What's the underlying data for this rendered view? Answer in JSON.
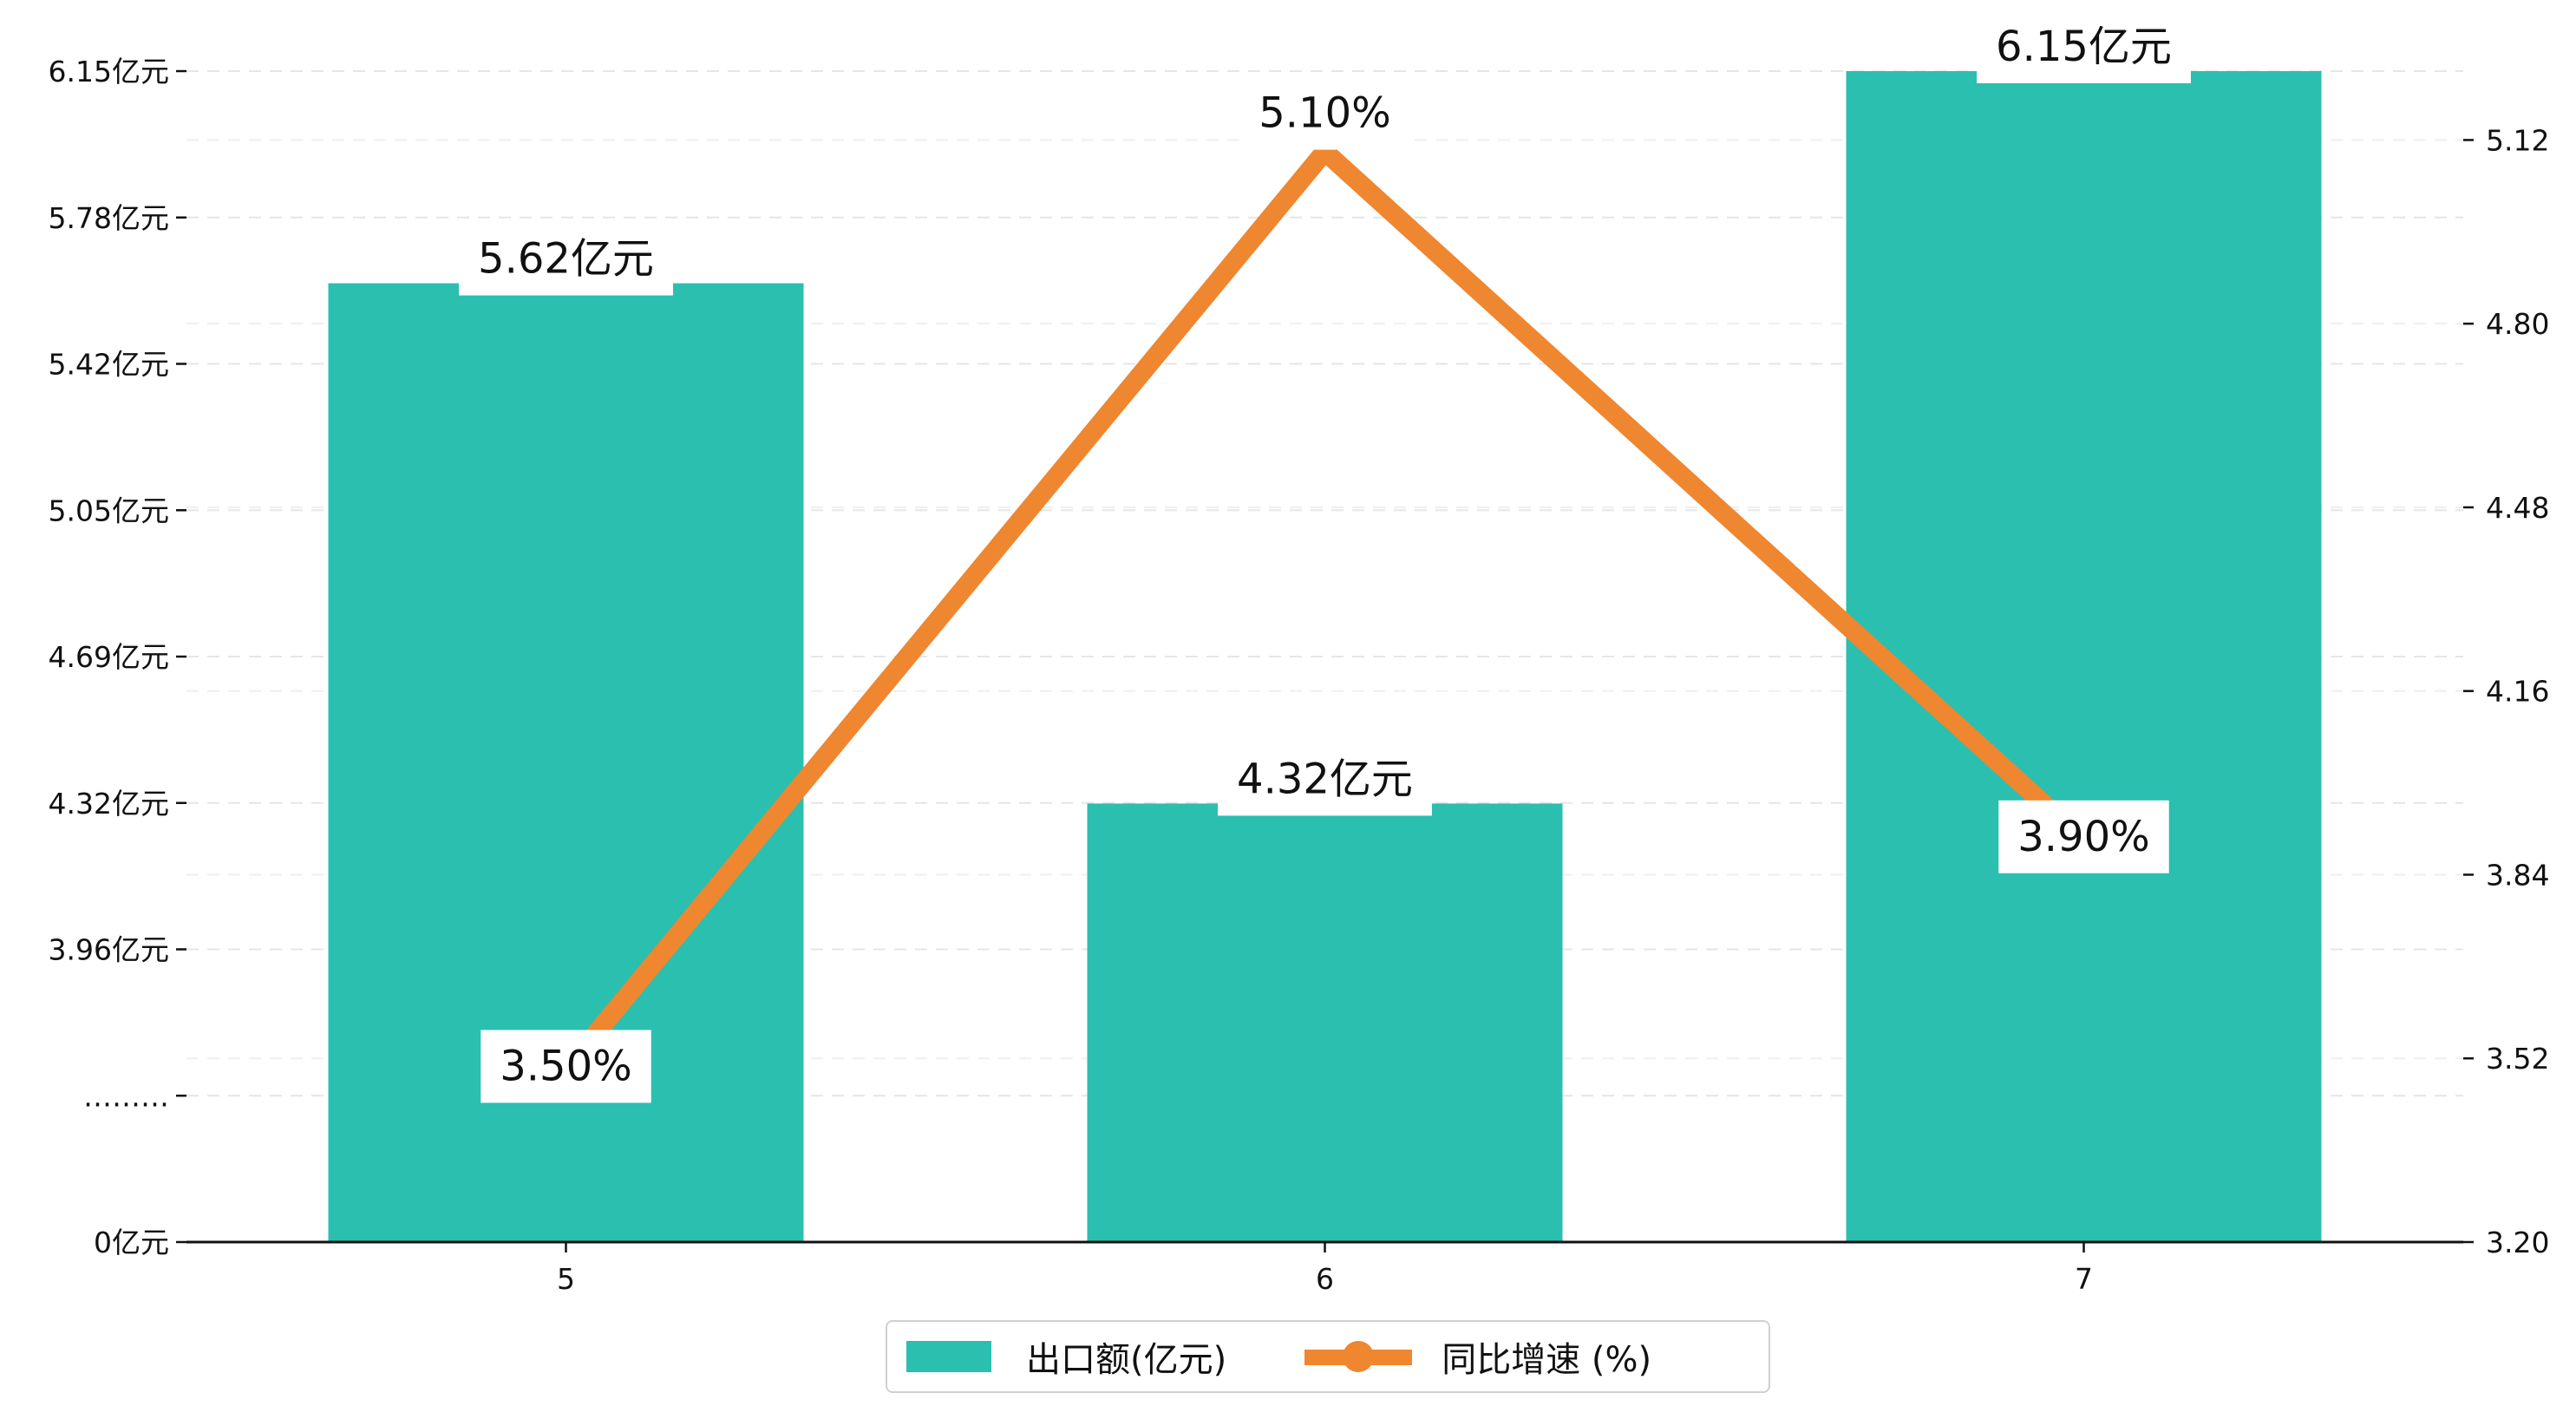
{
  "chart_data": {
    "type": "bar+line",
    "categories": [
      "5",
      "6",
      "7"
    ],
    "bar_series": {
      "name": "出口额(亿元)",
      "values": [
        5.62,
        4.32,
        6.15
      ],
      "data_labels": [
        "5.62亿元",
        "4.32亿元",
        "6.15亿元"
      ],
      "color": "#2bbfb0"
    },
    "line_series": {
      "name": "同比增速 (%)",
      "values": [
        3.5,
        5.1,
        3.9
      ],
      "data_labels": [
        "3.50%",
        "5.10%",
        "3.90%"
      ],
      "color": "#ef8630"
    },
    "left_axis": {
      "tick_labels": [
        "0亿元",
        "………",
        "3.96亿元",
        "4.32亿元",
        "4.69亿元",
        "5.05亿元",
        "5.42亿元",
        "5.78亿元",
        "6.15亿元"
      ],
      "broken": true,
      "range": [
        3.59,
        6.15
      ]
    },
    "right_axis": {
      "tick_values": [
        3.2,
        3.52,
        3.84,
        4.16,
        4.48,
        4.8,
        5.12
      ],
      "tick_labels": [
        "3.20",
        "3.52",
        "3.84",
        "4.16",
        "4.48",
        "4.80",
        "5.12"
      ],
      "range": [
        3.2,
        5.24
      ]
    },
    "grid": "horizontal dashed",
    "legend_position": "bottom-center"
  }
}
